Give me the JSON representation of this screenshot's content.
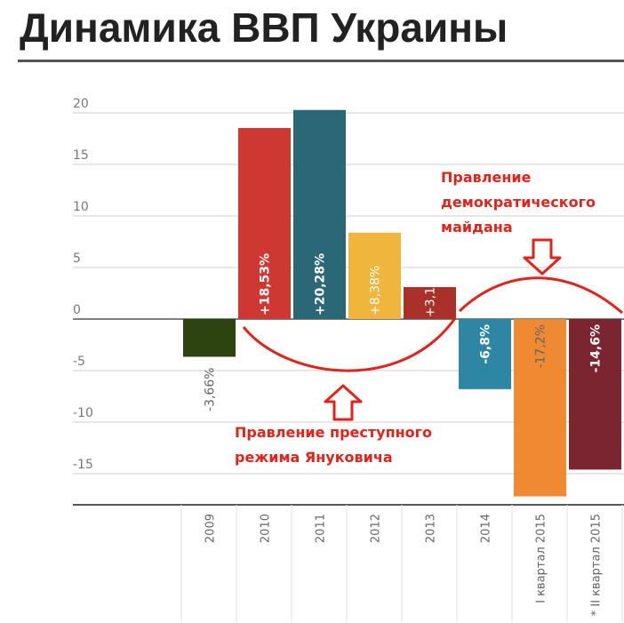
{
  "title": "Динамика ВВП Украины",
  "chart_data": {
    "type": "bar",
    "categories": [
      "2009",
      "2010",
      "2011",
      "2012",
      "2013",
      "2014",
      "I квартал 2015",
      "* II квартал 2015"
    ],
    "values": [
      -3.66,
      18.53,
      20.28,
      8.38,
      3.1,
      -6.8,
      -17.2,
      -14.6
    ],
    "data_labels": [
      "-3,66%",
      "+18,53%",
      "+20,28%",
      "+8,38%",
      "+3,1%",
      "-6,8%",
      "-17,2%",
      "-14,6%"
    ],
    "colors": [
      "#2d4410",
      "#cf3832",
      "#2a6878",
      "#f0b53c",
      "#a93129",
      "#2e86a5",
      "#f08a32",
      "#7a2530"
    ],
    "yticks": [
      "20",
      "15",
      "10",
      "5",
      "0",
      "-5",
      "-10",
      "-15"
    ],
    "ylim": [
      -17.5,
      20.5
    ],
    "grid": true,
    "annotations": {
      "maidan": [
        "Правление",
        "демократического",
        "майдана"
      ],
      "yanukovych": [
        "Правление преступного",
        "режима Януковича"
      ],
      "color": "#e2231a"
    }
  }
}
